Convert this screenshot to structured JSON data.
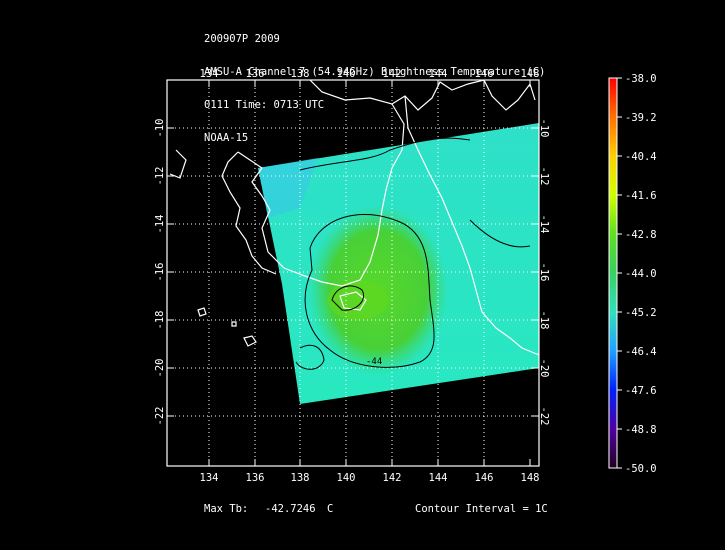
{
  "header": {
    "line1": "200907P 2009",
    "line2": "AMSU-A Channel 7 (54.94GHz) Brightness Temperature (C)",
    "line3": "0111 Time: 0713 UTC",
    "line4": "NOAA-15"
  },
  "map": {
    "lon_labels": [
      "134",
      "136",
      "138",
      "140",
      "142",
      "144",
      "146",
      "148"
    ],
    "lat_labels": [
      "-10",
      "-12",
      "-14",
      "-16",
      "-18",
      "-20",
      "-22"
    ],
    "lon_range": [
      132.5,
      148.5
    ],
    "lat_range": [
      -24.0,
      -8.5
    ],
    "contour_labels": [
      "-44"
    ]
  },
  "colorbar": {
    "ticks": [
      "-38.0",
      "-39.2",
      "-40.4",
      "-41.6",
      "-42.8",
      "-44.0",
      "-45.2",
      "-46.4",
      "-47.6",
      "-48.8",
      "-50.0"
    ],
    "max": -38.0,
    "min": -50.0,
    "colors": [
      "#ff0000",
      "#ff8000",
      "#ffd000",
      "#d8ff00",
      "#60e020",
      "#40d040",
      "#30e0b0",
      "#20a8ff",
      "#0030ff",
      "#5000a0",
      "#280028"
    ]
  },
  "footer": {
    "max_tb_label": "Max Tb:",
    "max_tb_value": "-42.7246",
    "max_tb_unit": "C",
    "contour_interval": "Contour Interval = 1C"
  }
}
